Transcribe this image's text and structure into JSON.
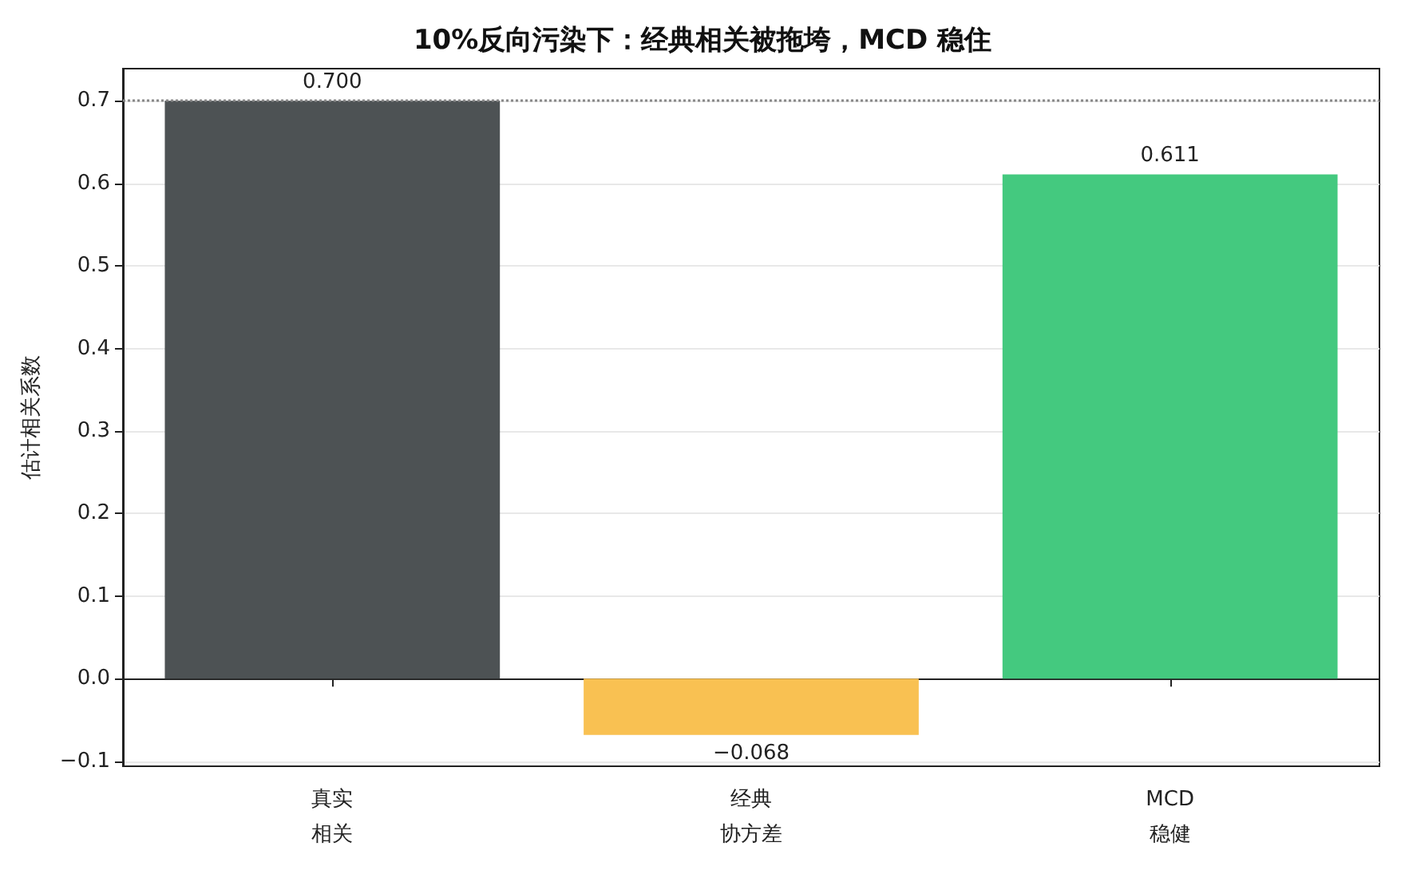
{
  "chart_data": {
    "type": "bar",
    "title": "10%反向污染下：经典相关被拖垮，MCD 稳住",
    "ylabel": "估计相关系数",
    "categories": [
      "真实相关",
      "经典协方差",
      "MCD 稳健"
    ],
    "values": [
      0.7,
      -0.068,
      0.611
    ],
    "colors": [
      "#4d5254",
      "#f9c152",
      "#44c97f"
    ],
    "value_labels": [
      "0.700",
      "−0.068",
      "0.611"
    ],
    "ylim": [
      -0.106,
      0.739
    ],
    "yticks": [
      {
        "value": -0.1,
        "label": "−0.1"
      },
      {
        "value": 0,
        "label": "0.0"
      },
      0.1,
      0.2,
      0.3,
      0.4,
      0.5,
      0.6,
      0.7
    ],
    "ref_lines": [
      {
        "axis": "y",
        "value": 0.7,
        "color": "#888888",
        "line_style": "dotted"
      }
    ],
    "grid": "y"
  }
}
